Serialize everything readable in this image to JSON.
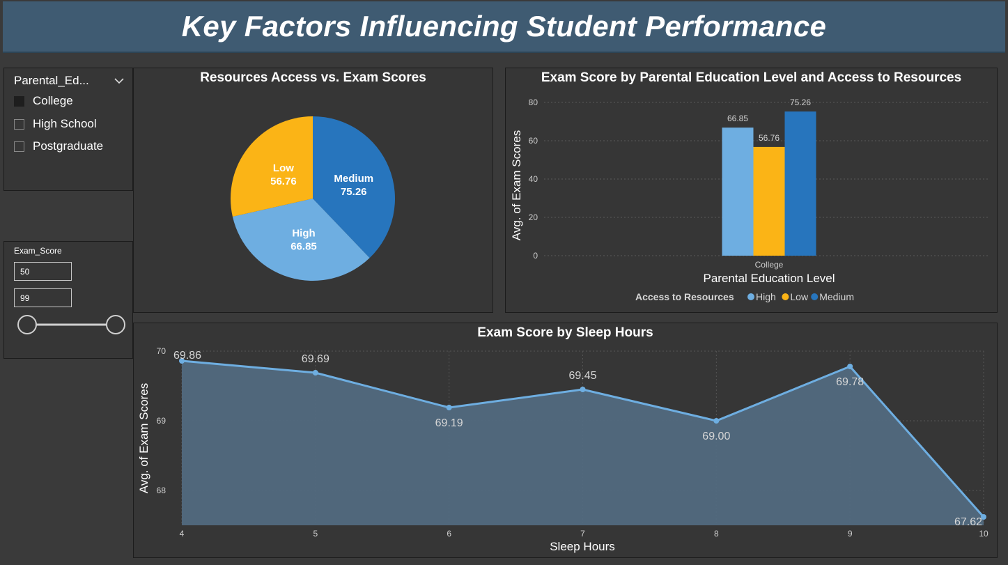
{
  "header": {
    "title": "Key Factors Influencing Student Performance"
  },
  "slicer_parental": {
    "title": "Parental_Ed...",
    "options": [
      {
        "label": "College",
        "checked": true
      },
      {
        "label": "High School",
        "checked": false
      },
      {
        "label": "Postgraduate",
        "checked": false
      }
    ]
  },
  "slicer_exam": {
    "title": "Exam_Score",
    "min": "50",
    "max": "99"
  },
  "colors": {
    "high": "#6eaee1",
    "low": "#fbb416",
    "medium": "#2775bd",
    "line": "#6eaee1",
    "area": "#526a80"
  },
  "chart_data": [
    {
      "type": "pie",
      "title": "Resources Access vs. Exam Scores",
      "slices": [
        {
          "label": "Medium",
          "value": 75.26,
          "display": "75.26"
        },
        {
          "label": "High",
          "value": 66.85,
          "display": "66.85"
        },
        {
          "label": "Low",
          "value": 56.76,
          "display": "56.76"
        }
      ]
    },
    {
      "type": "bar",
      "title": "Exam Score by Parental Education Level and Access to Resources",
      "xlabel": "Parental Education Level",
      "ylabel": "Avg. of Exam Scores",
      "categories": [
        "College"
      ],
      "series": [
        {
          "name": "High",
          "values": [
            66.85
          ],
          "labels": [
            "66.85"
          ]
        },
        {
          "name": "Low",
          "values": [
            56.76
          ],
          "labels": [
            "56.76"
          ]
        },
        {
          "name": "Medium",
          "values": [
            75.26
          ],
          "labels": [
            "75.26"
          ]
        }
      ],
      "ylim": [
        0,
        80
      ],
      "yticks": [
        "0",
        "20",
        "40",
        "60",
        "80"
      ],
      "legend_title": "Access to Resources",
      "legend_placement": "bottom",
      "grid": true
    },
    {
      "type": "area",
      "title": "Exam Score by Sleep Hours",
      "xlabel": "Sleep Hours",
      "ylabel": "Avg. of Exam Scores",
      "x": [
        4,
        5,
        6,
        7,
        8,
        9,
        10
      ],
      "xticks": [
        "4",
        "5",
        "6",
        "7",
        "8",
        "9",
        "10"
      ],
      "values": [
        69.86,
        69.69,
        69.19,
        69.45,
        69.0,
        69.78,
        67.62
      ],
      "labels": [
        "69.86",
        "69.69",
        "69.19",
        "69.45",
        "69.00",
        "69.78",
        "67.62"
      ],
      "ylim": [
        67.5,
        70
      ],
      "yticks": [
        "68",
        "69",
        "70"
      ],
      "grid": true
    }
  ]
}
